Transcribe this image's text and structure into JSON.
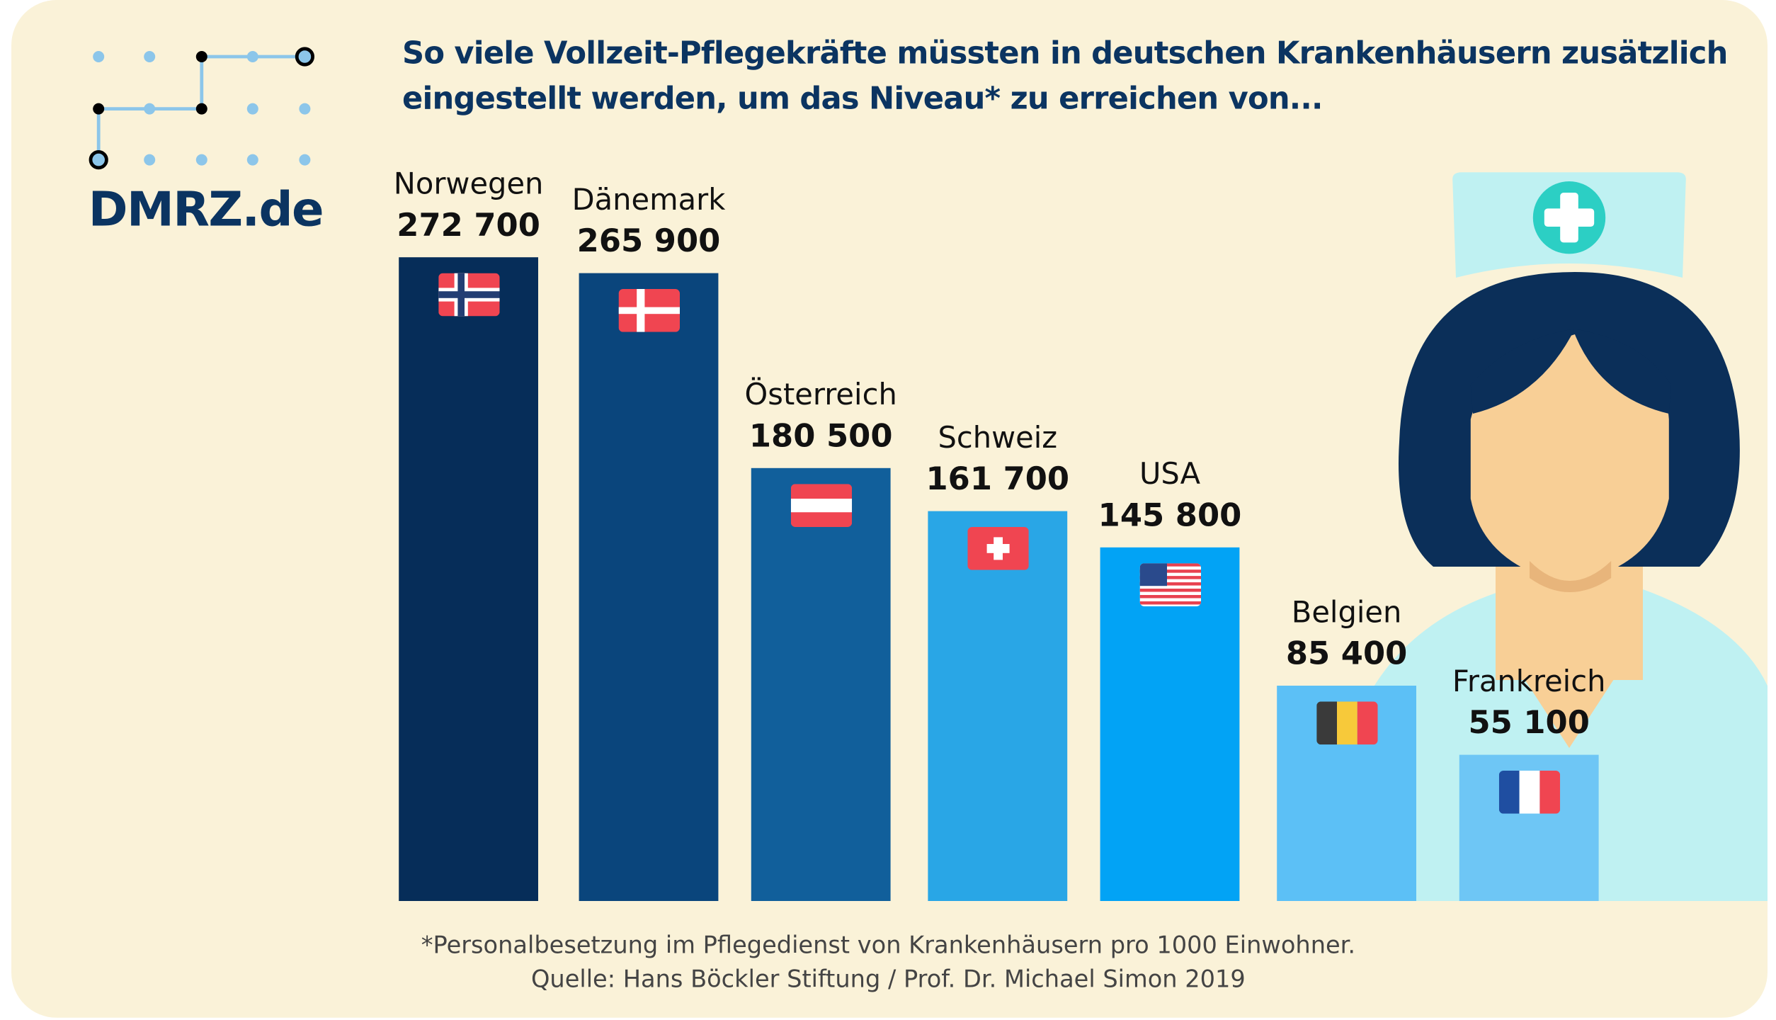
{
  "logo": {
    "text": "DMRZ.de"
  },
  "chart_data": {
    "type": "bar",
    "title": "So viele Vollzeit-Pflegekräfte müssten in deutschen Krankenhäusern zusätzlich eingestellt werden, um das Niveau* zu erreichen von...",
    "title_line1": "So viele Vollzeit-Pflegekräfte müssten in deutschen Krankenhäusern zusätzlich",
    "title_line2": "eingestellt werden, um das Niveau* zu erreichen von...",
    "categories": [
      "Norwegen",
      "Dänemark",
      "Österreich",
      "Schweiz",
      "USA",
      "Belgien",
      "Frankreich"
    ],
    "values": [
      272700,
      265900,
      180500,
      161700,
      145800,
      85400,
      55100
    ],
    "value_labels": [
      "272 700",
      "265 900",
      "180 500",
      "161 700",
      "145 800",
      "85 400",
      "55 100"
    ],
    "colors": [
      "#062d59",
      "#0a457c",
      "#115f9b",
      "#29a6e6",
      "#02a3f5",
      "#5cc0f6",
      "#6ec6f5"
    ],
    "flags": [
      "norway-flag",
      "denmark-flag",
      "austria-flag",
      "switzerland-flag",
      "usa-flag",
      "belgium-flag",
      "france-flag"
    ],
    "xlabel": "",
    "ylabel": ""
  },
  "footnote": {
    "line1": "*Personalbesetzung im Pflegedienst von Krankenhäusern pro 1000 Einwohner.",
    "line2": "Quelle: Hans Böckler Stiftung / Prof. Dr. Michael Simon 2019"
  }
}
